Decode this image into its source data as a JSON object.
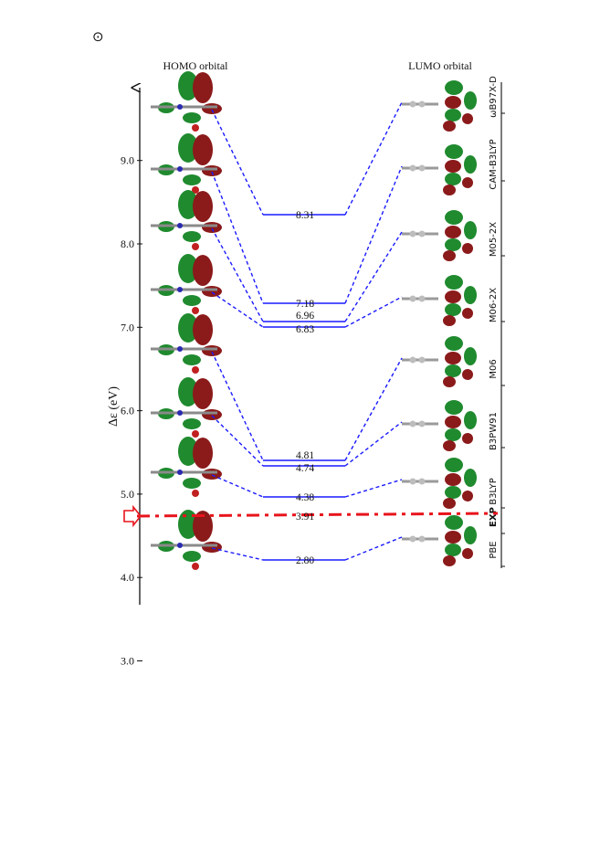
{
  "page": {
    "corner_symbol": "⊙"
  },
  "chart_data": {
    "type": "line",
    "title": "",
    "xlabel": "",
    "ylabel": "Δε (eV)",
    "ylim": [
      2.6,
      10.9
    ],
    "yticks": [
      "3.0",
      "4.0",
      "5.0",
      "6.0",
      "7.0",
      "8.0",
      "9.0"
    ],
    "column_labels": {
      "left": "HOMO orbital",
      "right": "LUMO orbital"
    },
    "colors": {
      "dft": "#1a1aff",
      "experiment": "#e8141c",
      "homo_lobe": "#1f8a2e",
      "lumo_lobe": "#8b1a1a"
    },
    "levels": [
      {
        "method": "ωB97X-D",
        "gap": 8.31,
        "label": "8.31"
      },
      {
        "method": "CAM-B3LYP",
        "gap": 7.18,
        "label": "7.18"
      },
      {
        "method": "M05-2X",
        "gap": 6.96,
        "label": "6.96"
      },
      {
        "method": "M06-2X",
        "gap": 6.83,
        "label": "6.83"
      },
      {
        "method": "M06",
        "gap": 4.81,
        "label": "4.81"
      },
      {
        "method": "B3PW91",
        "gap": 4.74,
        "label": "4.74"
      },
      {
        "method": "B3LYP",
        "gap": 4.38,
        "label": "4.38"
      },
      {
        "method": "EXP",
        "gap": 3.91,
        "label": "3.91",
        "experimental": true
      },
      {
        "method": "PBE",
        "gap": 2.8,
        "label": "2.80"
      }
    ]
  }
}
